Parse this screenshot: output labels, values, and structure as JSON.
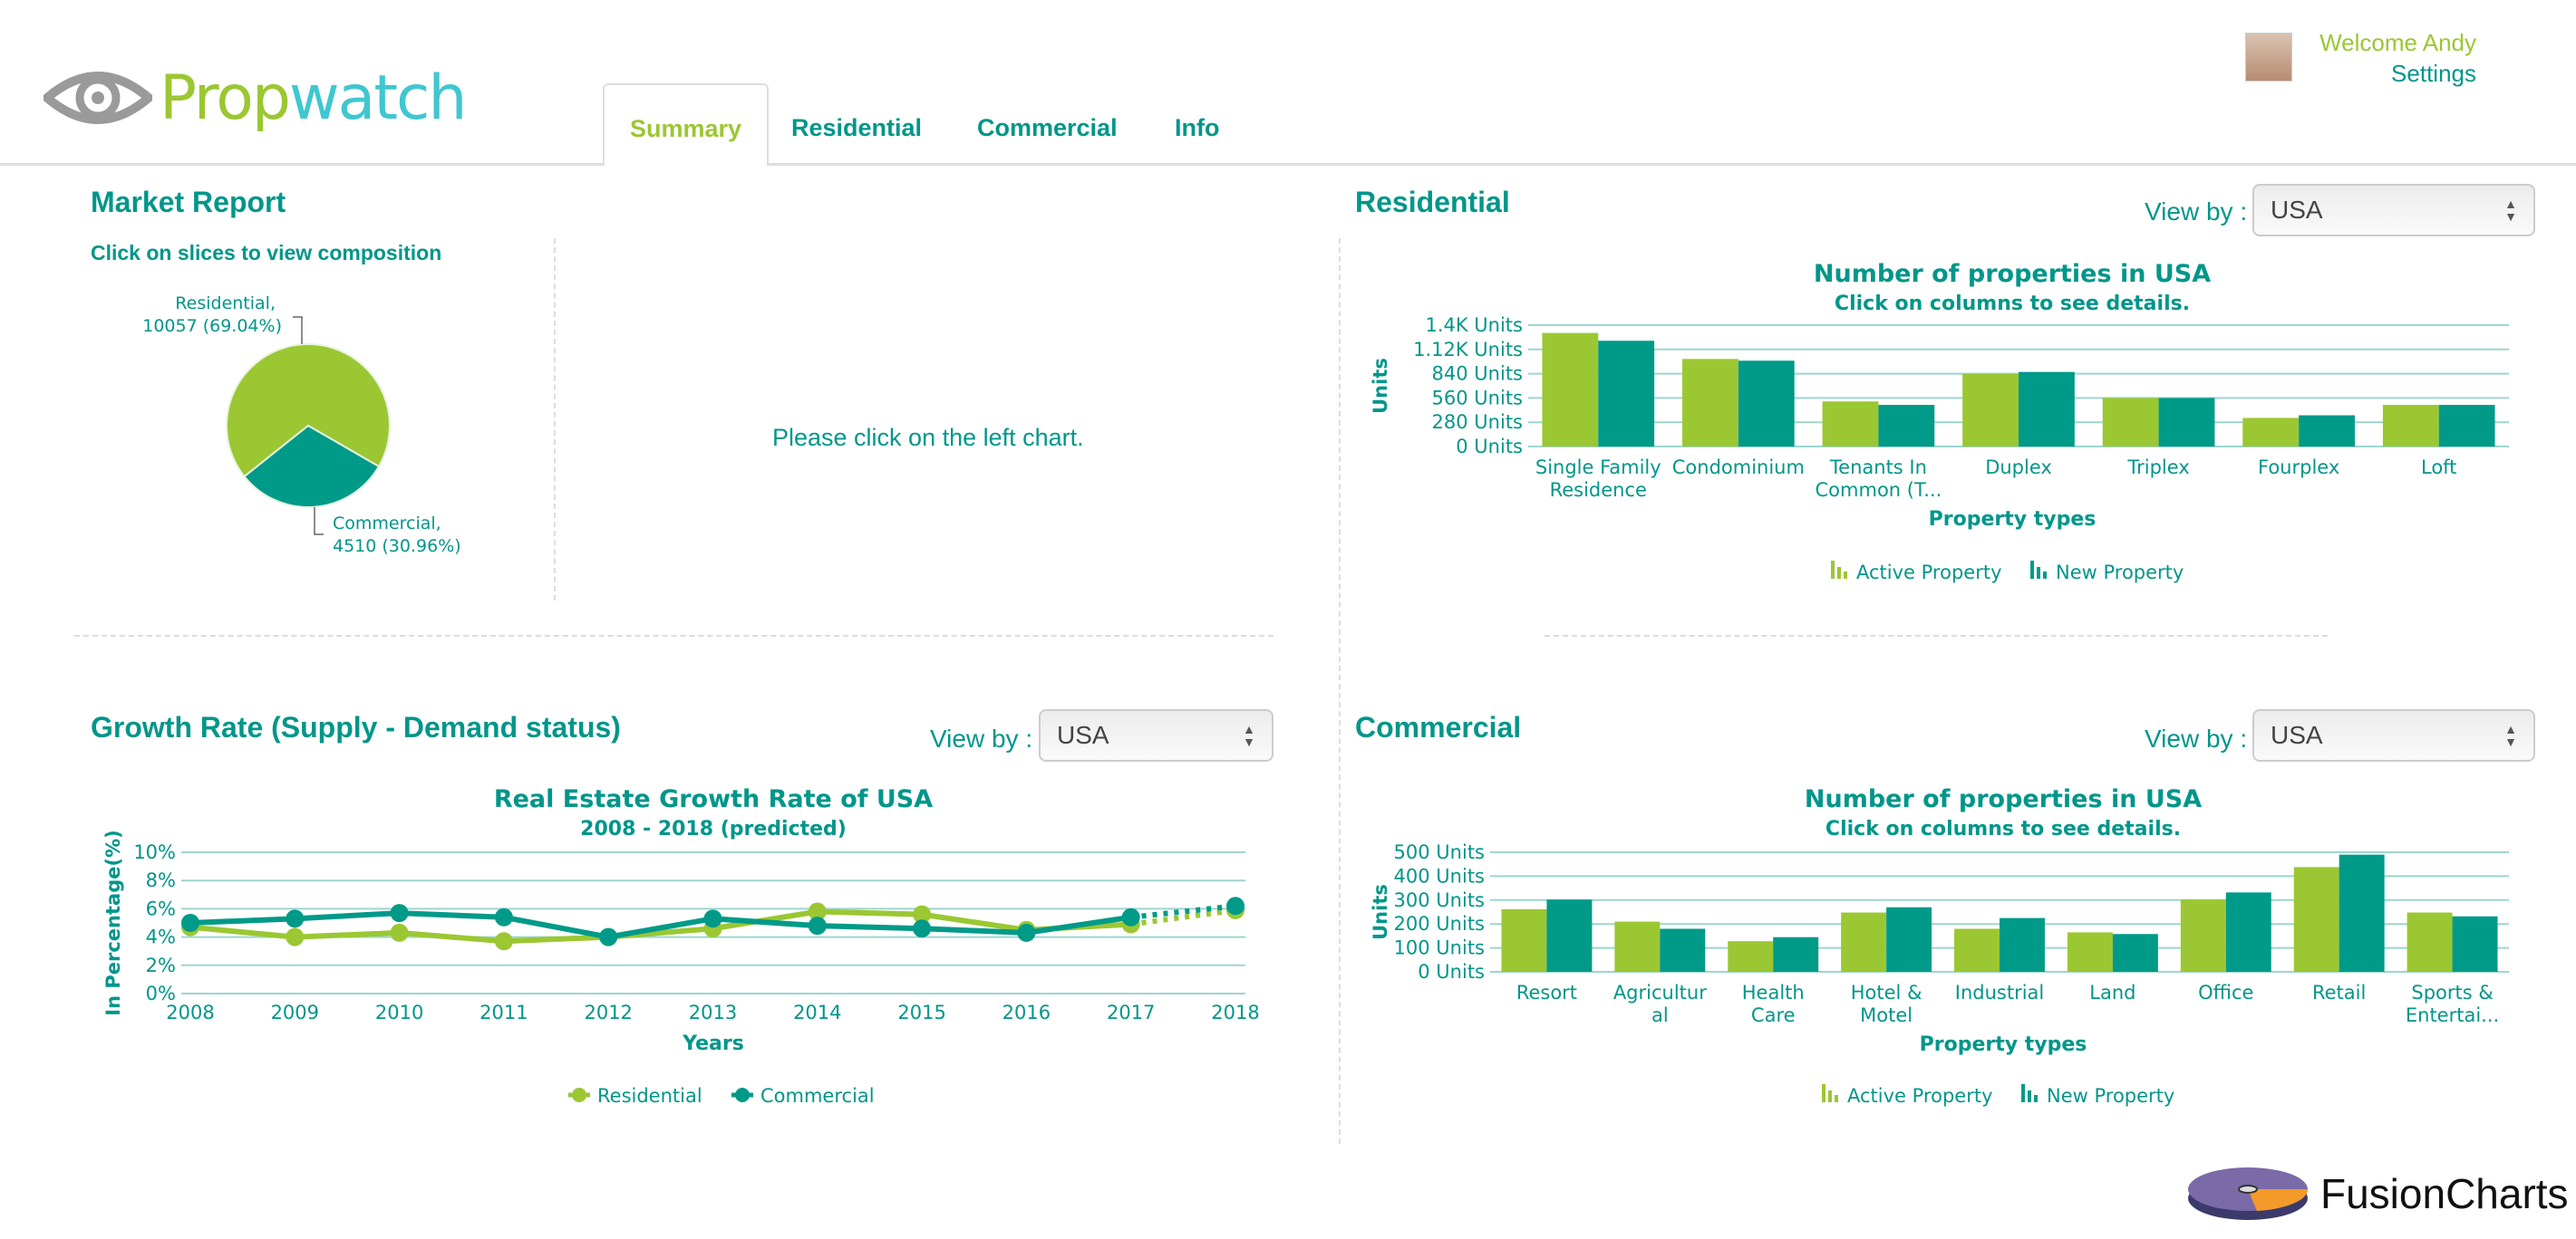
{
  "header": {
    "logo": {
      "part1": "Prop",
      "part2": "watch"
    },
    "tabs": [
      {
        "label": "Summary",
        "active": true
      },
      {
        "label": "Residential"
      },
      {
        "label": "Commercial"
      },
      {
        "label": "Info"
      }
    ],
    "user": {
      "welcome": "Welcome Andy",
      "settings": "Settings"
    }
  },
  "market": {
    "title": "Market Report",
    "subtitle": "Click on slices to view composition",
    "hint": "Please click on the left chart."
  },
  "residential": {
    "title": "Residential",
    "view_by": "View by :",
    "select": "USA"
  },
  "growth": {
    "title": "Growth Rate (Supply - Demand status)",
    "view_by": "View by :",
    "select": "USA"
  },
  "commercial": {
    "title": "Commercial",
    "view_by": "View by :",
    "select": "USA"
  },
  "footer": {
    "brand": "FusionCharts"
  },
  "colors": {
    "green": "#9bc732",
    "teal": "#009a89",
    "grid": "#9dd6cf",
    "text": "#00968a"
  },
  "chart_data": [
    {
      "id": "pie",
      "type": "pie",
      "slices": [
        {
          "label": "Residential,",
          "value_label": "10057 (69.04%)",
          "value": 10057,
          "percent": 69.04,
          "color": "#9bc732"
        },
        {
          "label": "Commercial,",
          "value_label": "4510 (30.96%)",
          "value": 4510,
          "percent": 30.96,
          "color": "#009a89"
        }
      ]
    },
    {
      "id": "res",
      "type": "bar",
      "title": "Number of properties in USA",
      "subtitle": "Click on columns to see details.",
      "xlabel": "Property types",
      "ylabel": "Units",
      "ylim": [
        0,
        1400
      ],
      "yticks": [
        "0 Units",
        "280 Units",
        "560 Units",
        "840 Units",
        "1.12K Units",
        "1.4K Units"
      ],
      "categories": [
        [
          "Single Family",
          "Residence"
        ],
        [
          "Condominium"
        ],
        [
          "Tenants In",
          "Common (T..."
        ],
        [
          "Duplex"
        ],
        [
          "Triplex"
        ],
        [
          "Fourplex"
        ],
        [
          "Loft"
        ]
      ],
      "series": [
        {
          "name": "Active Property",
          "color": "#9bc732",
          "values": [
            1310,
            1010,
            520,
            840,
            560,
            330,
            480
          ]
        },
        {
          "name": "New Property",
          "color": "#009a89",
          "values": [
            1220,
            990,
            480,
            860,
            560,
            360,
            480
          ]
        }
      ],
      "legend": "bottom",
      "grid": true
    },
    {
      "id": "com",
      "type": "bar",
      "title": "Number of properties in USA",
      "subtitle": "Click on columns to see details.",
      "xlabel": "Property types",
      "ylabel": "Units",
      "ylim": [
        0,
        500
      ],
      "yticks": [
        "0 Units",
        "100 Units",
        "200 Units",
        "300 Units",
        "400 Units",
        "500 Units"
      ],
      "categories": [
        [
          "Resort"
        ],
        [
          "Agricultur",
          "al"
        ],
        [
          "Health",
          "Care"
        ],
        [
          "Hotel &",
          "Motel"
        ],
        [
          "Industrial"
        ],
        [
          "Land"
        ],
        [
          "Office"
        ],
        [
          "Retail"
        ],
        [
          "Sports &",
          "Entertai..."
        ]
      ],
      "series": [
        {
          "name": "Active Property",
          "color": "#9bc732",
          "values": [
            262,
            210,
            128,
            248,
            180,
            165,
            302,
            438,
            248
          ]
        },
        {
          "name": "New Property",
          "color": "#009a89",
          "values": [
            302,
            180,
            145,
            270,
            225,
            158,
            332,
            490,
            232
          ]
        }
      ],
      "legend": "bottom",
      "grid": true
    },
    {
      "id": "growth",
      "type": "line",
      "title": "Real Estate Growth Rate of USA",
      "subtitle": "2008 - 2018 (predicted)",
      "xlabel": "Years",
      "ylabel": "In Percentage(%)",
      "ylim": [
        0,
        10
      ],
      "yticks": [
        "0%",
        "2%",
        "4%",
        "6%",
        "8%",
        "10%"
      ],
      "categories": [
        "2008",
        "2009",
        "2010",
        "2011",
        "2012",
        "2013",
        "2014",
        "2015",
        "2016",
        "2017",
        "2018"
      ],
      "predicted_from": "2017",
      "series": [
        {
          "name": "Residential",
          "color": "#9bc732",
          "values": [
            4.7,
            4.0,
            4.3,
            3.7,
            4.0,
            4.6,
            5.8,
            5.6,
            4.5,
            4.9,
            5.9
          ]
        },
        {
          "name": "Commercial",
          "color": "#009a89",
          "values": [
            5.0,
            5.3,
            5.7,
            5.4,
            4.0,
            5.3,
            4.8,
            4.6,
            4.3,
            5.4,
            6.2
          ]
        }
      ],
      "legend": "bottom",
      "grid": true
    }
  ]
}
